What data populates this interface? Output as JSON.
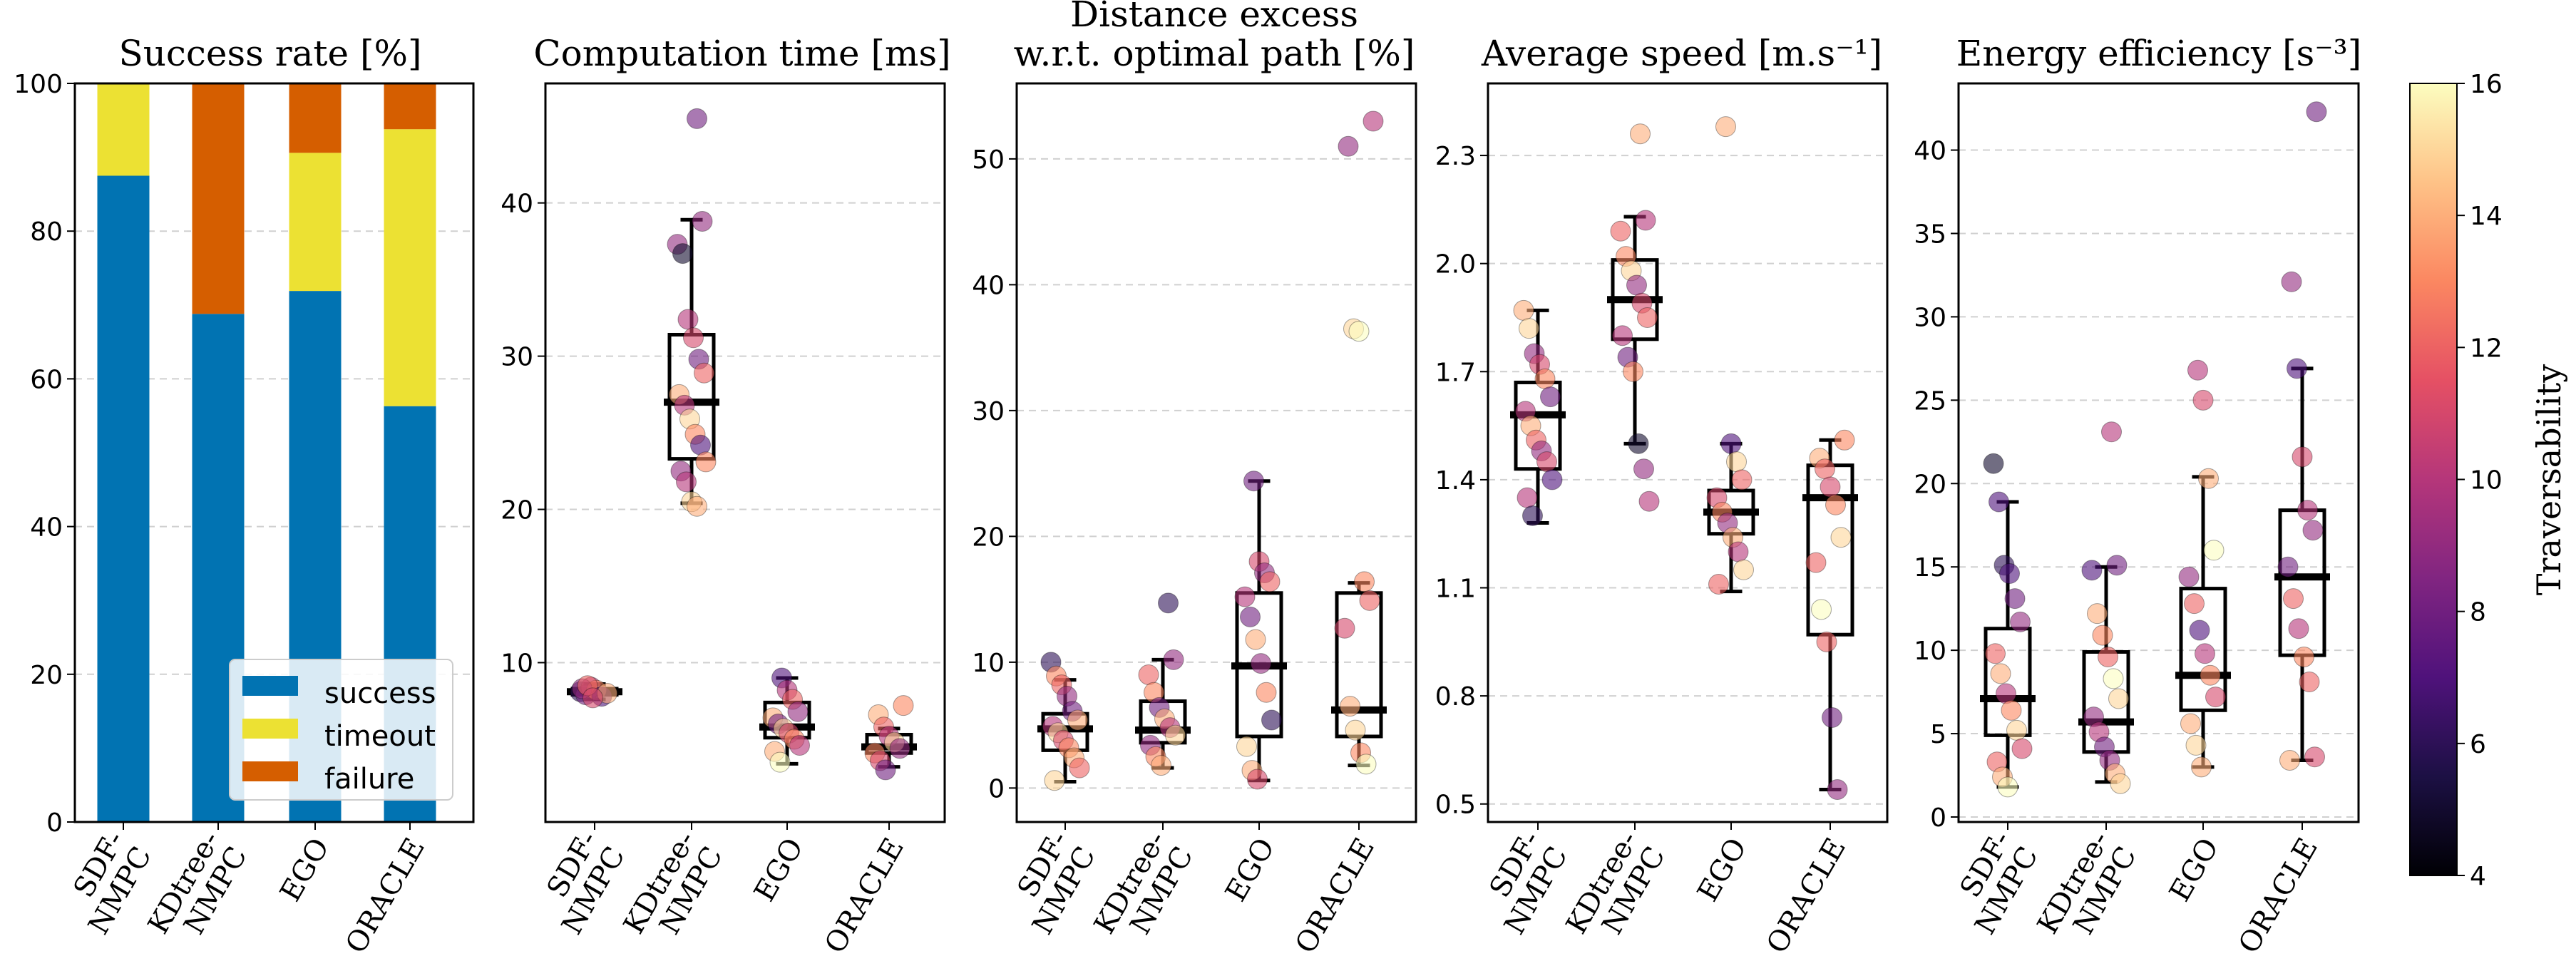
{
  "figure": {
    "colorbar_label": "Traversability"
  },
  "colorbar": {
    "min": 4,
    "max": 16,
    "ticks": [
      "4",
      "6",
      "8",
      "10",
      "12",
      "14",
      "16"
    ]
  },
  "legend": [
    {
      "label": "success",
      "color": "#0173b2"
    },
    {
      "label": "timeout",
      "color": "#ece133"
    },
    {
      "label": "failure",
      "color": "#d55e00"
    }
  ],
  "chart_data": [
    {
      "type": "bar",
      "stacked": true,
      "title": "Success rate [%]",
      "categories": [
        "SDF-\nNMPC",
        "KDtree-\nNMPC",
        "EGO",
        "ORACLE"
      ],
      "ylim": [
        0,
        100
      ],
      "yticks": [
        "0",
        "20",
        "40",
        "60",
        "80",
        "100"
      ],
      "series": [
        {
          "name": "success",
          "values": [
            87.5,
            68.8,
            71.9,
            56.3
          ]
        },
        {
          "name": "timeout",
          "values": [
            12.5,
            0,
            18.7,
            37.5
          ]
        },
        {
          "name": "failure",
          "values": [
            0,
            31.2,
            9.4,
            6.2
          ]
        }
      ]
    },
    {
      "type": "box",
      "title": "Computation time [ms]",
      "categories": [
        "SDF-\nNMPC",
        "KDtree-\nNMPC",
        "EGO",
        "ORACLE"
      ],
      "ylim": [
        -0.4,
        47.8
      ],
      "yticks": [
        "10",
        "20",
        "30",
        "40"
      ],
      "boxes": [
        {
          "whislo": 7.6,
          "q1": 7.9,
          "med": 8.1,
          "q3": 8.3,
          "whishi": 8.6
        },
        {
          "whislo": 20.4,
          "q1": 23.3,
          "med": 27.0,
          "q3": 31.4,
          "whishi": 38.9
        },
        {
          "whislo": 3.4,
          "q1": 5.1,
          "med": 5.8,
          "q3": 7.4,
          "whishi": 9.0
        },
        {
          "whislo": 3.2,
          "q1": 4.1,
          "med": 4.5,
          "q3": 5.3,
          "whishi": 5.7
        }
      ],
      "points": [
        [
          [
            8.1,
            6
          ],
          [
            7.9,
            8
          ],
          [
            8.4,
            10
          ],
          [
            8.2,
            13
          ],
          [
            7.8,
            7
          ],
          [
            8.0,
            14
          ],
          [
            8.3,
            9
          ],
          [
            8.5,
            12
          ],
          [
            7.7,
            11
          ]
        ],
        [
          [
            45.5,
            8
          ],
          [
            38.8,
            9
          ],
          [
            37.3,
            9
          ],
          [
            36.7,
            5
          ],
          [
            32.4,
            10
          ],
          [
            31.2,
            11
          ],
          [
            29.8,
            8
          ],
          [
            28.9,
            12
          ],
          [
            27.5,
            14
          ],
          [
            26.8,
            10
          ],
          [
            25.9,
            15
          ],
          [
            24.9,
            13
          ],
          [
            24.2,
            7
          ],
          [
            23.1,
            13
          ],
          [
            22.5,
            9
          ],
          [
            21.8,
            10
          ],
          [
            20.5,
            15
          ],
          [
            20.2,
            14
          ]
        ],
        [
          [
            9.0,
            7
          ],
          [
            8.2,
            10
          ],
          [
            7.6,
            12
          ],
          [
            6.8,
            9
          ],
          [
            6.4,
            14
          ],
          [
            6.0,
            8
          ],
          [
            5.7,
            15
          ],
          [
            5.4,
            11
          ],
          [
            5.0,
            13
          ],
          [
            4.6,
            10
          ],
          [
            4.2,
            14
          ],
          [
            3.5,
            16
          ]
        ],
        [
          [
            7.2,
            13
          ],
          [
            6.6,
            14
          ],
          [
            5.8,
            12
          ],
          [
            5.2,
            10
          ],
          [
            4.8,
            15
          ],
          [
            4.4,
            9
          ],
          [
            4.1,
            13
          ],
          [
            3.6,
            11
          ],
          [
            3.0,
            8
          ]
        ]
      ]
    },
    {
      "type": "box",
      "title": "Distance excess\nw.r.t. optimal path [%]",
      "categories": [
        "SDF-\nNMPC",
        "KDtree-\nNMPC",
        "EGO",
        "ORACLE"
      ],
      "ylim": [
        -2.7,
        56.0
      ],
      "yticks": [
        "0",
        "10",
        "20",
        "30",
        "40",
        "50"
      ],
      "boxes": [
        {
          "whislo": 0.5,
          "q1": 3.0,
          "med": 4.7,
          "q3": 5.9,
          "whishi": 8.6
        },
        {
          "whislo": 1.6,
          "q1": 3.6,
          "med": 4.6,
          "q3": 6.9,
          "whishi": 10.2
        },
        {
          "whislo": 0.6,
          "q1": 4.1,
          "med": 9.7,
          "q3": 15.5,
          "whishi": 24.4
        },
        {
          "whislo": 1.8,
          "q1": 4.1,
          "med": 6.2,
          "q3": 15.5,
          "whishi": 16.3
        }
      ],
      "points": [
        [
          [
            10.0,
            6
          ],
          [
            8.9,
            13
          ],
          [
            8.2,
            12
          ],
          [
            7.3,
            9
          ],
          [
            6.1,
            8
          ],
          [
            5.4,
            14
          ],
          [
            4.9,
            10
          ],
          [
            4.4,
            15
          ],
          [
            3.8,
            11
          ],
          [
            3.2,
            13
          ],
          [
            2.4,
            14
          ],
          [
            1.6,
            12
          ],
          [
            0.6,
            15
          ]
        ],
        [
          [
            14.7,
            6
          ],
          [
            10.2,
            9
          ],
          [
            9.0,
            12
          ],
          [
            7.6,
            13
          ],
          [
            6.4,
            8
          ],
          [
            5.5,
            14
          ],
          [
            4.8,
            10
          ],
          [
            4.2,
            15
          ],
          [
            3.4,
            9
          ],
          [
            2.5,
            13
          ],
          [
            1.8,
            14
          ]
        ],
        [
          [
            24.4,
            8
          ],
          [
            18.0,
            11
          ],
          [
            17.1,
            9
          ],
          [
            16.4,
            12
          ],
          [
            15.2,
            10
          ],
          [
            13.6,
            8
          ],
          [
            11.8,
            14
          ],
          [
            9.9,
            9
          ],
          [
            7.6,
            13
          ],
          [
            5.4,
            6
          ],
          [
            3.3,
            15
          ],
          [
            1.4,
            14
          ],
          [
            0.7,
            11
          ]
        ],
        [
          [
            53.0,
            10
          ],
          [
            51.0,
            9
          ],
          [
            36.5,
            15
          ],
          [
            36.3,
            16
          ],
          [
            16.4,
            13
          ],
          [
            14.9,
            12
          ],
          [
            12.7,
            11
          ],
          [
            6.5,
            14
          ],
          [
            4.6,
            15
          ],
          [
            2.8,
            13
          ],
          [
            1.9,
            16
          ]
        ]
      ]
    },
    {
      "type": "box",
      "title": "Average speed [m.s⁻¹]",
      "categories": [
        "SDF-\nNMPC",
        "KDtree-\nNMPC",
        "EGO",
        "ORACLE"
      ],
      "ylim": [
        0.45,
        2.5
      ],
      "yticks": [
        "0.5",
        "0.8",
        "1.1",
        "1.4",
        "1.7",
        "2.0",
        "2.3"
      ],
      "boxes": [
        {
          "whislo": 1.28,
          "q1": 1.43,
          "med": 1.58,
          "q3": 1.67,
          "whishi": 1.87
        },
        {
          "whislo": 1.5,
          "q1": 1.79,
          "med": 1.9,
          "q3": 2.01,
          "whishi": 2.13
        },
        {
          "whislo": 1.09,
          "q1": 1.25,
          "med": 1.31,
          "q3": 1.37,
          "whishi": 1.5
        },
        {
          "whislo": 0.54,
          "q1": 0.97,
          "med": 1.35,
          "q3": 1.44,
          "whishi": 1.51
        }
      ],
      "points": [
        [
          [
            1.87,
            14
          ],
          [
            1.82,
            15
          ],
          [
            1.75,
            9
          ],
          [
            1.72,
            11
          ],
          [
            1.68,
            13
          ],
          [
            1.63,
            8
          ],
          [
            1.59,
            10
          ],
          [
            1.55,
            14
          ],
          [
            1.51,
            12
          ],
          [
            1.48,
            9
          ],
          [
            1.45,
            11
          ],
          [
            1.4,
            7
          ],
          [
            1.35,
            10
          ],
          [
            1.3,
            6
          ]
        ],
        [
          [
            2.36,
            14
          ],
          [
            2.12,
            10
          ],
          [
            2.09,
            12
          ],
          [
            2.02,
            13
          ],
          [
            1.98,
            15
          ],
          [
            1.94,
            9
          ],
          [
            1.89,
            11
          ],
          [
            1.85,
            12
          ],
          [
            1.8,
            10
          ],
          [
            1.74,
            8
          ],
          [
            1.7,
            13
          ],
          [
            1.5,
            5
          ],
          [
            1.43,
            9
          ],
          [
            1.34,
            10
          ]
        ],
        [
          [
            2.38,
            14
          ],
          [
            1.5,
            7
          ],
          [
            1.45,
            15
          ],
          [
            1.4,
            12
          ],
          [
            1.35,
            11
          ],
          [
            1.31,
            13
          ],
          [
            1.28,
            9
          ],
          [
            1.24,
            14
          ],
          [
            1.2,
            10
          ],
          [
            1.15,
            15
          ],
          [
            1.11,
            12
          ]
        ],
        [
          [
            1.51,
            13
          ],
          [
            1.46,
            14
          ],
          [
            1.43,
            12
          ],
          [
            1.38,
            11
          ],
          [
            1.33,
            13
          ],
          [
            1.24,
            15
          ],
          [
            1.17,
            12
          ],
          [
            1.04,
            16
          ],
          [
            0.95,
            12
          ],
          [
            0.74,
            8
          ],
          [
            0.54,
            9
          ]
        ]
      ]
    },
    {
      "type": "box",
      "title": "Energy efficiency [s⁻³]",
      "categories": [
        "SDF-\nNMPC",
        "KDtree-\nNMPC",
        "EGO",
        "ORACLE"
      ],
      "ylim": [
        -0.3,
        44.0
      ],
      "yticks": [
        "0",
        "5",
        "10",
        "15",
        "20",
        "25",
        "30",
        "35",
        "40"
      ],
      "boxes": [
        {
          "whislo": 1.8,
          "q1": 4.9,
          "med": 7.1,
          "q3": 11.3,
          "whishi": 18.9
        },
        {
          "whislo": 2.1,
          "q1": 3.9,
          "med": 5.7,
          "q3": 9.9,
          "whishi": 15.0
        },
        {
          "whislo": 3.0,
          "q1": 6.4,
          "med": 8.5,
          "q3": 13.7,
          "whishi": 20.4
        },
        {
          "whislo": 3.4,
          "q1": 9.7,
          "med": 14.4,
          "q3": 18.4,
          "whishi": 26.9
        }
      ],
      "points": [
        [
          [
            21.2,
            5
          ],
          [
            18.9,
            7
          ],
          [
            15.1,
            6
          ],
          [
            14.6,
            7
          ],
          [
            13.1,
            8
          ],
          [
            11.7,
            9
          ],
          [
            9.8,
            12
          ],
          [
            8.6,
            14
          ],
          [
            7.4,
            10
          ],
          [
            6.4,
            13
          ],
          [
            5.2,
            15
          ],
          [
            4.1,
            11
          ],
          [
            3.3,
            12
          ],
          [
            2.4,
            14
          ],
          [
            1.8,
            16
          ]
        ],
        [
          [
            23.1,
            10
          ],
          [
            15.1,
            8
          ],
          [
            14.8,
            7
          ],
          [
            12.2,
            14
          ],
          [
            10.9,
            13
          ],
          [
            9.6,
            12
          ],
          [
            8.3,
            16
          ],
          [
            7.1,
            15
          ],
          [
            6.0,
            9
          ],
          [
            5.1,
            10
          ],
          [
            4.2,
            8
          ],
          [
            3.4,
            9
          ],
          [
            2.6,
            14
          ],
          [
            2.0,
            15
          ]
        ],
        [
          [
            26.8,
            10
          ],
          [
            25.0,
            11
          ],
          [
            20.3,
            14
          ],
          [
            16.0,
            16
          ],
          [
            14.4,
            9
          ],
          [
            12.8,
            12
          ],
          [
            11.2,
            7
          ],
          [
            9.8,
            10
          ],
          [
            8.5,
            13
          ],
          [
            7.2,
            11
          ],
          [
            5.6,
            14
          ],
          [
            4.3,
            15
          ],
          [
            3.0,
            14
          ]
        ],
        [
          [
            42.3,
            8
          ],
          [
            32.1,
            9
          ],
          [
            26.9,
            7
          ],
          [
            21.6,
            11
          ],
          [
            18.4,
            10
          ],
          [
            17.2,
            9
          ],
          [
            15.0,
            8
          ],
          [
            13.1,
            12
          ],
          [
            11.3,
            10
          ],
          [
            9.6,
            13
          ],
          [
            8.1,
            12
          ],
          [
            3.6,
            11
          ],
          [
            3.4,
            14
          ]
        ]
      ]
    }
  ]
}
